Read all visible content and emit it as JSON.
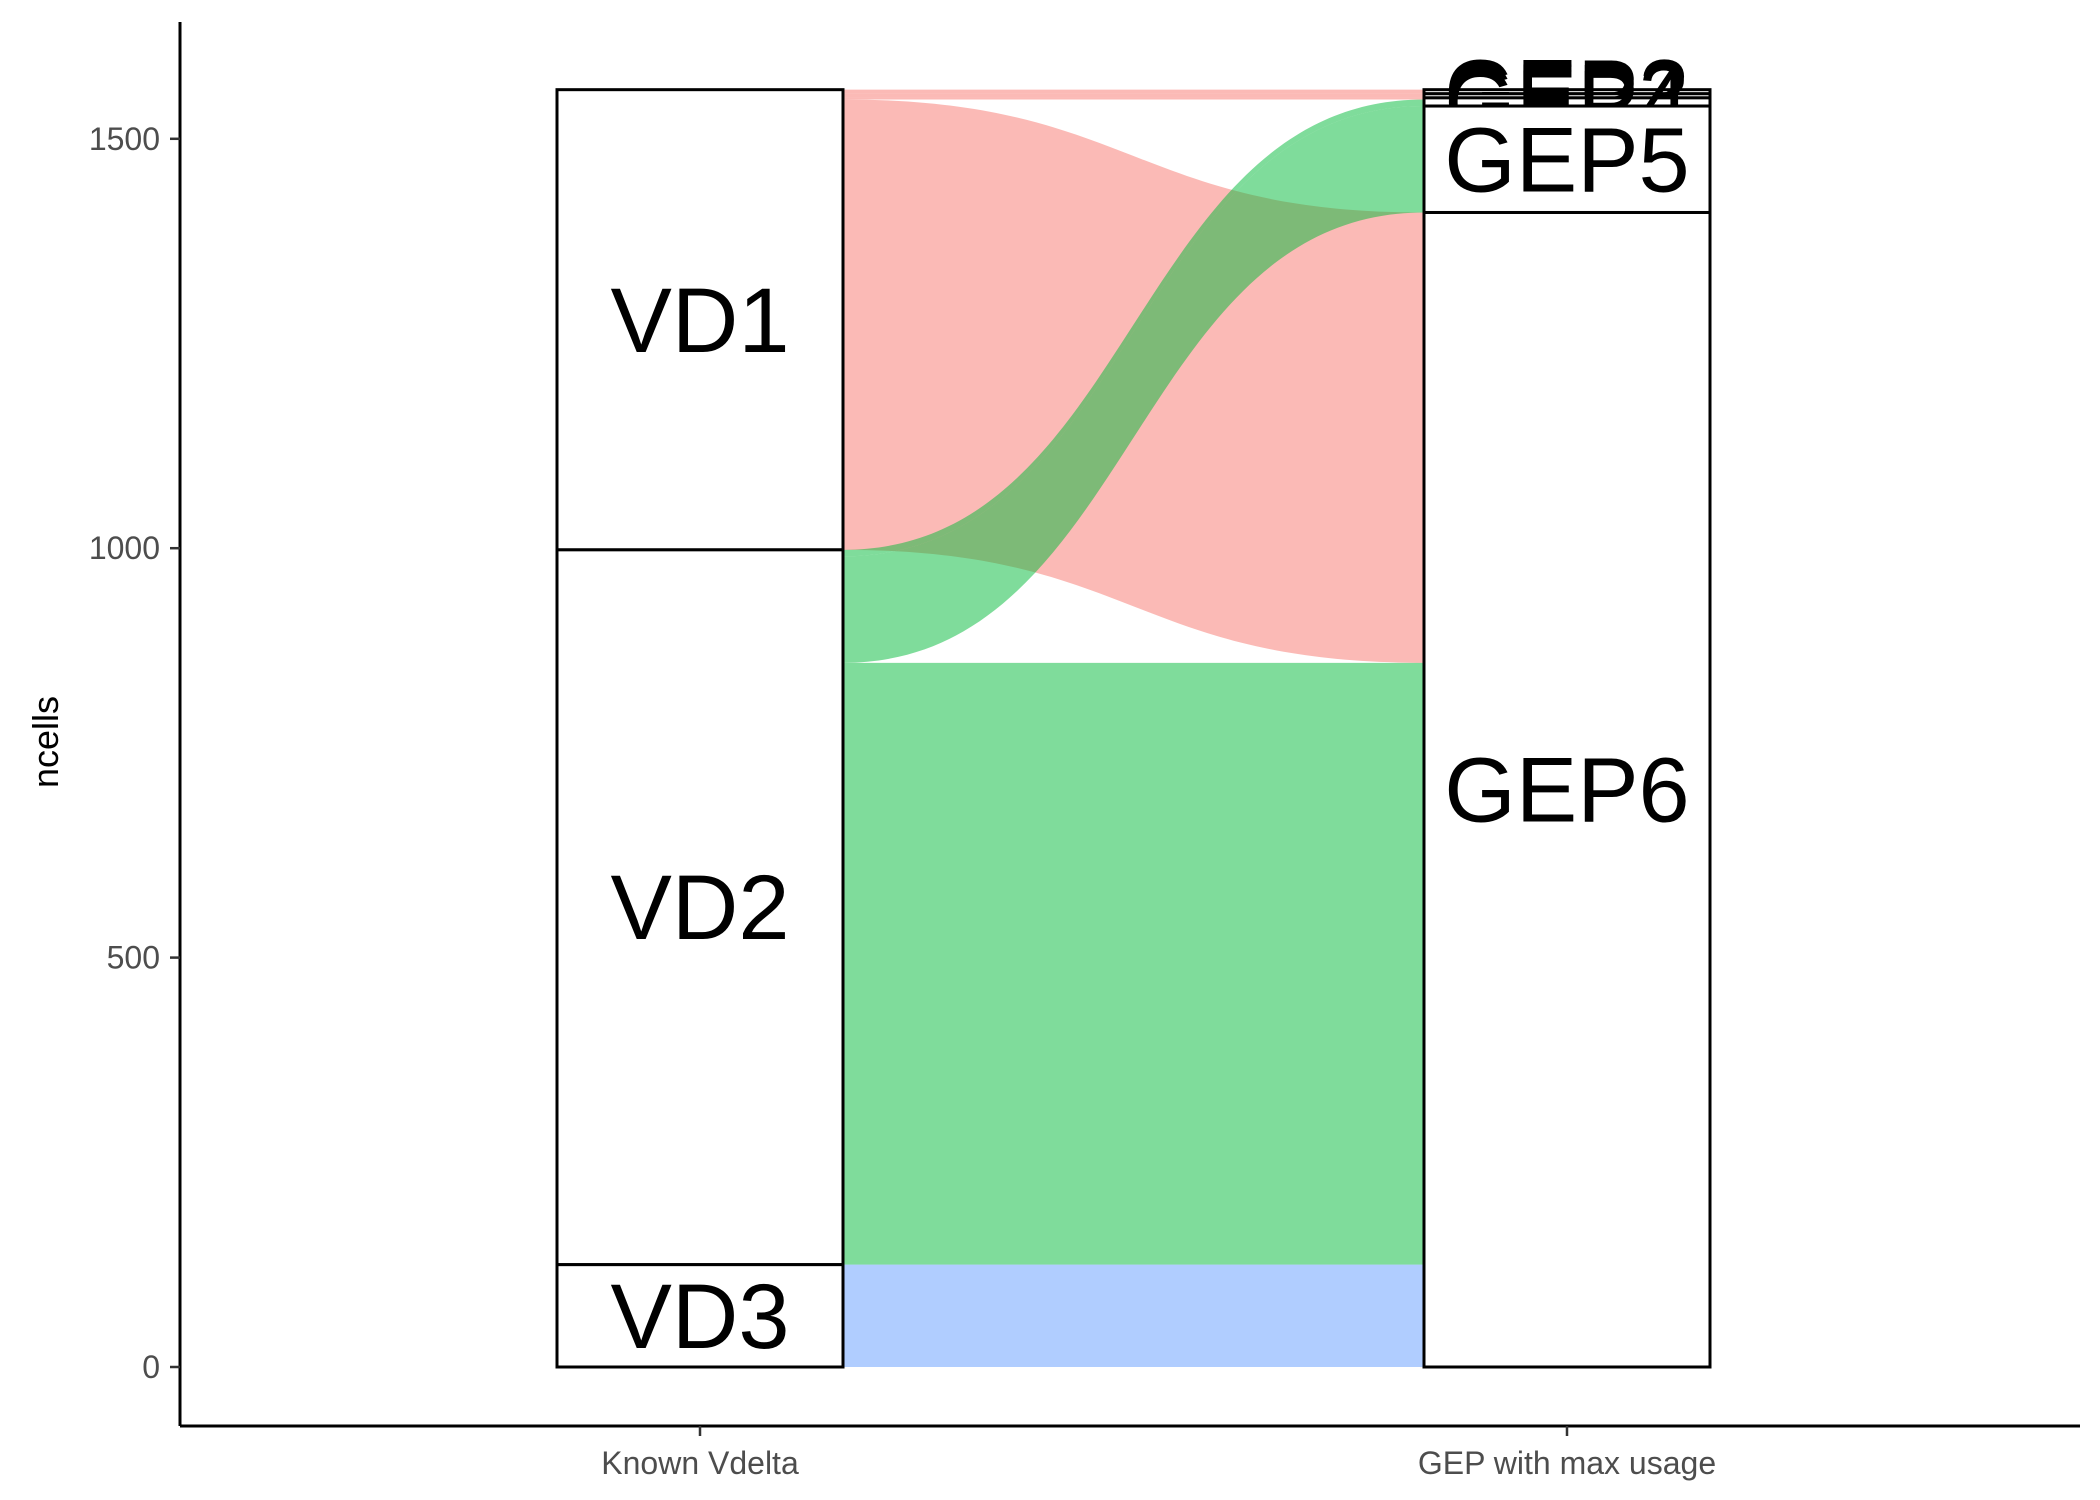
{
  "chart_data": {
    "type": "alluvial",
    "ylabel": "ncells",
    "ylim": [
      -75,
      1640
    ],
    "yticks": [
      0,
      500,
      1000,
      1500
    ],
    "axes": [
      "Known Vdelta",
      "GEP with max usage"
    ],
    "strata": {
      "Known Vdelta": [
        {
          "label": "VD1",
          "count": 562
        },
        {
          "label": "VD2",
          "count": 873
        },
        {
          "label": "VD3",
          "count": 125
        }
      ],
      "GEP with max usage": [
        {
          "label": "GEP2",
          "count": 5
        },
        {
          "label": "GEP3",
          "count": 5
        },
        {
          "label": "GEP4",
          "count": 10
        },
        {
          "label": "GEP5",
          "count": 130
        },
        {
          "label": "GEP6",
          "count": 1410
        }
      ]
    },
    "flows": [
      {
        "from": "VD1",
        "to": "GEP2",
        "count": 5,
        "color": "#f8766d"
      },
      {
        "from": "VD1",
        "to": "GEP3",
        "count": 5,
        "color": "#f8766d"
      },
      {
        "from": "VD1",
        "to": "GEP4",
        "count": 2,
        "color": "#f8766d"
      },
      {
        "from": "VD1",
        "to": "GEP6",
        "count": 550,
        "color": "#f8766d"
      },
      {
        "from": "VD2",
        "to": "GEP4",
        "count": 8,
        "color": "#00ba38"
      },
      {
        "from": "VD2",
        "to": "GEP5",
        "count": 130,
        "color": "#00ba38"
      },
      {
        "from": "VD2",
        "to": "GEP6",
        "count": 735,
        "color": "#00ba38"
      },
      {
        "from": "VD3",
        "to": "GEP6",
        "count": 125,
        "color": "#619cff"
      }
    ],
    "flow_opacity": 0.5
  }
}
